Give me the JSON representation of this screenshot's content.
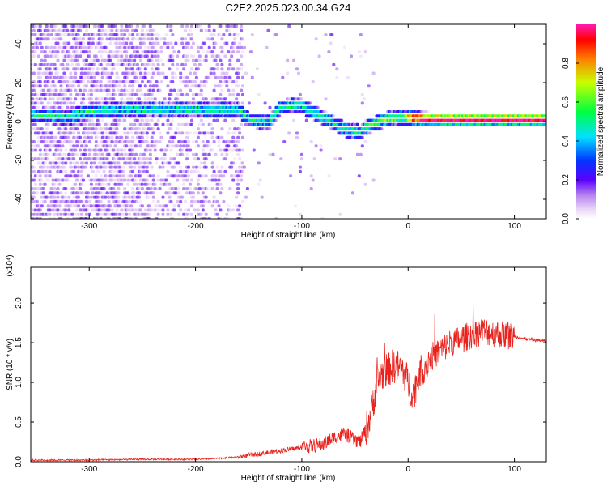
{
  "title": "C2E2.2025.023.00.34.G24",
  "chart_data": [
    {
      "type": "heatmap",
      "xlabel": "Height of straight line (km)",
      "ylabel": "Frequency (Hz)",
      "xlim": [
        -355,
        130
      ],
      "ylim": [
        -50,
        50
      ],
      "xticks": [
        -300,
        -200,
        -100,
        0,
        100
      ],
      "yticks": [
        -40,
        -20,
        0,
        20,
        40
      ],
      "ridge": {
        "x": [
          -350,
          -320,
          -300,
          -280,
          -250,
          -220,
          -200,
          -180,
          -160,
          -150,
          -140,
          -130,
          -120,
          -110,
          -100,
          -90,
          -80,
          -70,
          -60,
          -50,
          -45,
          -40,
          -30,
          -20,
          -10,
          0,
          20,
          50,
          80,
          100,
          130
        ],
        "freq": [
          3,
          2,
          5,
          6,
          6,
          6,
          6,
          6,
          6,
          1,
          0,
          0,
          7,
          8,
          8,
          5,
          2,
          -1,
          -4,
          -5,
          -6,
          -3,
          -1,
          1,
          2,
          2,
          1,
          1,
          1,
          1,
          1
        ]
      },
      "colorbar": {
        "label": "Normalized spectral amplitude",
        "range": [
          0,
          1
        ],
        "ticks": [
          0.0,
          0.2,
          0.4,
          0.6,
          0.8
        ],
        "tick_labels": [
          "0.0",
          "0.2",
          "0.4",
          "0.6",
          "0.8"
        ]
      }
    },
    {
      "type": "line",
      "xlabel": "Height of straight line (km)",
      "ylabel": "SNR (10 * v/v)",
      "y_multiplier": "(x10⁴)",
      "xlim": [
        -355,
        130
      ],
      "ylim": [
        0,
        2.45
      ],
      "xticks": [
        -300,
        -200,
        -100,
        0,
        100
      ],
      "yticks": [
        0.0,
        0.5,
        1.0,
        1.5,
        2.0
      ],
      "ytick_labels": [
        "0.0",
        "0.5",
        "1.0",
        "1.5",
        "2.0"
      ],
      "color": "#e8231e",
      "series": [
        {
          "x": [
            -355,
            -300,
            -250,
            -200,
            -180,
            -160,
            -140,
            -120,
            -100,
            -80,
            -70,
            -60,
            -50,
            -45,
            -40,
            -35,
            -30,
            -25,
            -20,
            -15,
            -10,
            -5,
            0,
            5,
            10,
            20,
            30,
            40,
            50,
            60,
            70,
            80,
            90,
            100,
            110,
            120,
            130
          ],
          "y": [
            0.02,
            0.02,
            0.03,
            0.03,
            0.04,
            0.06,
            0.1,
            0.14,
            0.18,
            0.22,
            0.3,
            0.35,
            0.28,
            0.25,
            0.4,
            0.6,
            0.95,
            1.1,
            1.15,
            1.2,
            1.2,
            1.15,
            1.0,
            0.85,
            1.1,
            1.3,
            1.4,
            1.5,
            1.55,
            1.6,
            1.65,
            1.62,
            1.6,
            1.58,
            1.55,
            1.53,
            1.52
          ]
        }
      ]
    }
  ]
}
